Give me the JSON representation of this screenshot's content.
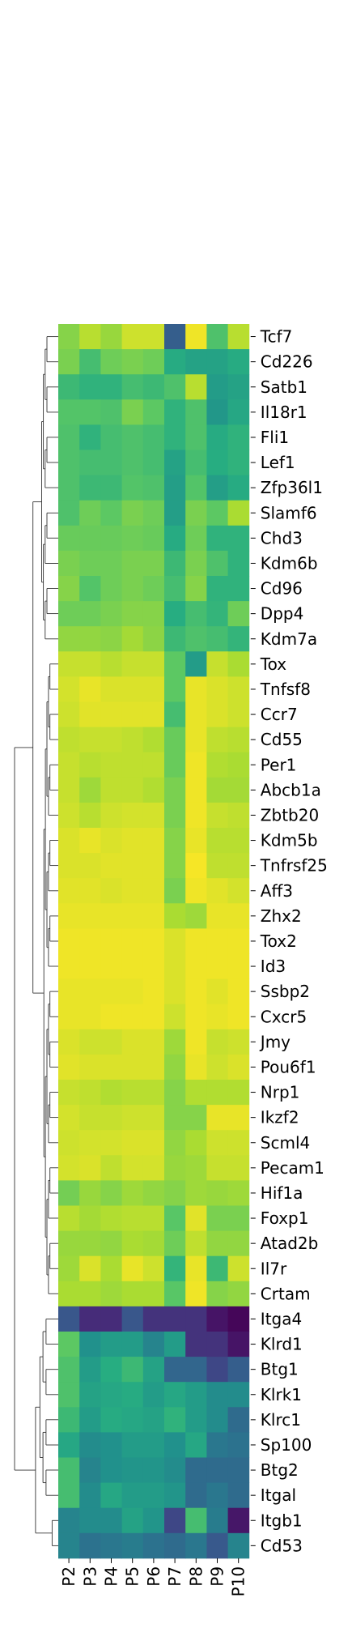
{
  "chart_data": {
    "type": "heatmap",
    "title": "",
    "xlabel": "",
    "ylabel": "",
    "colormap": "viridis",
    "value_range": [
      0,
      1
    ],
    "columns": [
      "P2",
      "P3",
      "P4",
      "P5",
      "P6",
      "P7",
      "P8",
      "P9",
      "P10"
    ],
    "rows": [
      "Tcf7",
      "Cd226",
      "Satb1",
      "Il18r1",
      "Fli1",
      "Lef1",
      "Zfp36l1",
      "Slamf6",
      "Chd3",
      "Kdm6b",
      "Cd96",
      "Dpp4",
      "Kdm7a",
      "Tox",
      "Tnfsf8",
      "Ccr7",
      "Cd55",
      "Per1",
      "Abcb1a",
      "Zbtb20",
      "Kdm5b",
      "Tnfrsf25",
      "Aff3",
      "Zhx2",
      "Tox2",
      "Id3",
      "Ssbp2",
      "Cxcr5",
      "Jmy",
      "Pou6f1",
      "Nrp1",
      "Ikzf2",
      "Scml4",
      "Pecam1",
      "Hif1a",
      "Foxp1",
      "Atad2b",
      "Il7r",
      "Crtam",
      "Itga4",
      "Klrd1",
      "Btg1",
      "Klrk1",
      "Klrc1",
      "Sp100",
      "Btg2",
      "Itgal",
      "Itgb1",
      "Cd53"
    ],
    "values": [
      [
        0.82,
        0.9,
        0.85,
        0.93,
        0.93,
        0.3,
        0.98,
        0.72,
        0.9
      ],
      [
        0.8,
        0.7,
        0.78,
        0.8,
        0.78,
        0.62,
        0.58,
        0.58,
        0.62
      ],
      [
        0.68,
        0.65,
        0.65,
        0.7,
        0.68,
        0.72,
        0.9,
        0.55,
        0.58
      ],
      [
        0.73,
        0.73,
        0.72,
        0.8,
        0.75,
        0.65,
        0.72,
        0.53,
        0.6
      ],
      [
        0.72,
        0.65,
        0.7,
        0.72,
        0.7,
        0.65,
        0.72,
        0.62,
        0.65
      ],
      [
        0.72,
        0.7,
        0.7,
        0.72,
        0.7,
        0.58,
        0.7,
        0.63,
        0.65
      ],
      [
        0.72,
        0.68,
        0.68,
        0.73,
        0.72,
        0.56,
        0.73,
        0.56,
        0.62
      ],
      [
        0.72,
        0.78,
        0.75,
        0.8,
        0.78,
        0.56,
        0.8,
        0.75,
        0.88
      ],
      [
        0.77,
        0.77,
        0.77,
        0.78,
        0.77,
        0.62,
        0.78,
        0.65,
        0.65
      ],
      [
        0.8,
        0.78,
        0.78,
        0.8,
        0.8,
        0.68,
        0.8,
        0.72,
        0.65
      ],
      [
        0.82,
        0.73,
        0.78,
        0.8,
        0.78,
        0.7,
        0.82,
        0.65,
        0.65
      ],
      [
        0.78,
        0.78,
        0.8,
        0.82,
        0.82,
        0.63,
        0.7,
        0.66,
        0.78
      ],
      [
        0.84,
        0.84,
        0.83,
        0.87,
        0.83,
        0.68,
        0.72,
        0.7,
        0.66
      ],
      [
        0.92,
        0.92,
        0.9,
        0.92,
        0.92,
        0.75,
        0.55,
        0.92,
        0.88
      ],
      [
        0.94,
        0.97,
        0.95,
        0.95,
        0.95,
        0.75,
        0.97,
        0.95,
        0.93
      ],
      [
        0.93,
        0.96,
        0.96,
        0.96,
        0.96,
        0.7,
        0.97,
        0.95,
        0.93
      ],
      [
        0.91,
        0.92,
        0.92,
        0.91,
        0.89,
        0.77,
        0.97,
        0.91,
        0.9
      ],
      [
        0.92,
        0.9,
        0.91,
        0.91,
        0.91,
        0.77,
        0.98,
        0.89,
        0.88
      ],
      [
        0.92,
        0.86,
        0.91,
        0.91,
        0.89,
        0.8,
        0.98,
        0.87,
        0.87
      ],
      [
        0.93,
        0.9,
        0.93,
        0.94,
        0.94,
        0.8,
        0.98,
        0.92,
        0.91
      ],
      [
        0.95,
        0.97,
        0.95,
        0.96,
        0.96,
        0.82,
        0.97,
        0.9,
        0.9
      ],
      [
        0.95,
        0.95,
        0.96,
        0.96,
        0.96,
        0.82,
        0.99,
        0.91,
        0.91
      ],
      [
        0.96,
        0.96,
        0.95,
        0.96,
        0.96,
        0.8,
        0.98,
        0.96,
        0.94
      ],
      [
        0.97,
        0.97,
        0.97,
        0.97,
        0.97,
        0.88,
        0.86,
        0.97,
        0.97
      ],
      [
        0.98,
        0.98,
        0.98,
        0.98,
        0.98,
        0.95,
        0.98,
        0.98,
        0.98
      ],
      [
        0.98,
        0.98,
        0.98,
        0.98,
        0.98,
        0.95,
        0.98,
        0.98,
        0.98
      ],
      [
        0.97,
        0.97,
        0.97,
        0.97,
        0.98,
        0.95,
        0.98,
        0.96,
        0.98
      ],
      [
        0.97,
        0.97,
        0.98,
        0.98,
        0.98,
        0.93,
        0.98,
        0.97,
        0.98
      ],
      [
        0.95,
        0.93,
        0.93,
        0.95,
        0.95,
        0.86,
        0.98,
        0.92,
        0.93
      ],
      [
        0.96,
        0.95,
        0.95,
        0.95,
        0.95,
        0.84,
        0.97,
        0.93,
        0.95
      ],
      [
        0.92,
        0.91,
        0.89,
        0.9,
        0.9,
        0.82,
        0.89,
        0.89,
        0.89
      ],
      [
        0.94,
        0.92,
        0.92,
        0.93,
        0.93,
        0.82,
        0.82,
        0.97,
        0.97
      ],
      [
        0.93,
        0.94,
        0.94,
        0.95,
        0.95,
        0.84,
        0.88,
        0.93,
        0.93
      ],
      [
        0.94,
        0.95,
        0.91,
        0.94,
        0.94,
        0.85,
        0.86,
        0.92,
        0.92
      ],
      [
        0.79,
        0.85,
        0.82,
        0.86,
        0.84,
        0.82,
        0.86,
        0.85,
        0.86
      ],
      [
        0.9,
        0.87,
        0.89,
        0.9,
        0.9,
        0.74,
        0.96,
        0.8,
        0.8
      ],
      [
        0.85,
        0.85,
        0.84,
        0.88,
        0.87,
        0.78,
        0.91,
        0.84,
        0.84
      ],
      [
        0.86,
        0.95,
        0.88,
        0.97,
        0.93,
        0.66,
        0.97,
        0.68,
        0.93
      ],
      [
        0.88,
        0.88,
        0.86,
        0.88,
        0.88,
        0.74,
        0.98,
        0.82,
        0.84
      ],
      [
        0.27,
        0.15,
        0.15,
        0.27,
        0.17,
        0.17,
        0.17,
        0.07,
        0.02
      ],
      [
        0.75,
        0.5,
        0.55,
        0.55,
        0.45,
        0.55,
        0.17,
        0.17,
        0.07
      ],
      [
        0.72,
        0.55,
        0.63,
        0.68,
        0.58,
        0.33,
        0.33,
        0.22,
        0.3
      ],
      [
        0.72,
        0.58,
        0.6,
        0.62,
        0.55,
        0.6,
        0.55,
        0.48,
        0.48
      ],
      [
        0.68,
        0.55,
        0.62,
        0.6,
        0.58,
        0.65,
        0.55,
        0.48,
        0.35
      ],
      [
        0.6,
        0.48,
        0.5,
        0.55,
        0.55,
        0.5,
        0.6,
        0.4,
        0.38
      ],
      [
        0.7,
        0.45,
        0.5,
        0.52,
        0.52,
        0.48,
        0.35,
        0.35,
        0.35
      ],
      [
        0.7,
        0.48,
        0.6,
        0.55,
        0.55,
        0.52,
        0.35,
        0.4,
        0.35
      ],
      [
        0.45,
        0.48,
        0.48,
        0.58,
        0.52,
        0.22,
        0.7,
        0.42,
        0.08
      ],
      [
        0.45,
        0.38,
        0.4,
        0.42,
        0.38,
        0.35,
        0.4,
        0.28,
        0.45
      ]
    ]
  }
}
